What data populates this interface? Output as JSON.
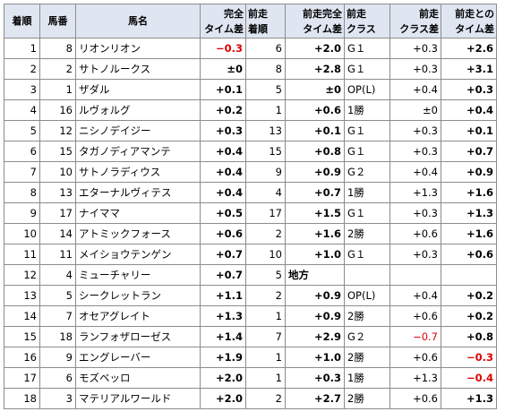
{
  "headers": [
    [
      "着順"
    ],
    [
      "馬番"
    ],
    [
      "馬名"
    ],
    [
      "完全",
      "タイム差"
    ],
    [
      "前走",
      "着順"
    ],
    [
      "前走完全",
      "タイム差"
    ],
    [
      "前走",
      "クラス"
    ],
    [
      "前走",
      "クラス差"
    ],
    [
      "前走との",
      "タイム差"
    ]
  ],
  "rows": [
    {
      "rank": "1",
      "num": "8",
      "name": "リオンリオン",
      "diff": "−0.3",
      "prev_rank": "6",
      "prev_diff": "+2.0",
      "prev_class": "G１",
      "class_diff": "+0.3",
      "time_change": "+2.6"
    },
    {
      "rank": "2",
      "num": "2",
      "name": "サトノルークス",
      "diff": "±0",
      "prev_rank": "8",
      "prev_diff": "+2.8",
      "prev_class": "G１",
      "class_diff": "+0.3",
      "time_change": "+3.1"
    },
    {
      "rank": "3",
      "num": "1",
      "name": "ザダル",
      "diff": "+0.1",
      "prev_rank": "5",
      "prev_diff": "±0",
      "prev_class": "OP(L)",
      "class_diff": "+0.4",
      "time_change": "+0.3"
    },
    {
      "rank": "4",
      "num": "16",
      "name": "ルヴォルグ",
      "diff": "+0.2",
      "prev_rank": "1",
      "prev_diff": "+0.6",
      "prev_class": "1勝",
      "class_diff": "±0",
      "time_change": "+0.4"
    },
    {
      "rank": "5",
      "num": "12",
      "name": "ニシノデイジー",
      "diff": "+0.3",
      "prev_rank": "13",
      "prev_diff": "+0.1",
      "prev_class": "G１",
      "class_diff": "+0.3",
      "time_change": "+0.1"
    },
    {
      "rank": "6",
      "num": "15",
      "name": "タガノディアマンテ",
      "diff": "+0.4",
      "prev_rank": "15",
      "prev_diff": "+0.8",
      "prev_class": "G１",
      "class_diff": "+0.3",
      "time_change": "+0.7"
    },
    {
      "rank": "7",
      "num": "10",
      "name": "サトノラディウス",
      "diff": "+0.4",
      "prev_rank": "9",
      "prev_diff": "+0.9",
      "prev_class": "G２",
      "class_diff": "+0.4",
      "time_change": "+0.9"
    },
    {
      "rank": "8",
      "num": "13",
      "name": "エターナルヴィテス",
      "diff": "+0.4",
      "prev_rank": "4",
      "prev_diff": "+0.7",
      "prev_class": "1勝",
      "class_diff": "+1.3",
      "time_change": "+1.6"
    },
    {
      "rank": "9",
      "num": "17",
      "name": "ナイママ",
      "diff": "+0.5",
      "prev_rank": "17",
      "prev_diff": "+1.5",
      "prev_class": "G１",
      "class_diff": "+0.3",
      "time_change": "+1.3"
    },
    {
      "rank": "10",
      "num": "14",
      "name": "アトミックフォース",
      "diff": "+0.6",
      "prev_rank": "2",
      "prev_diff": "+1.6",
      "prev_class": "2勝",
      "class_diff": "+0.6",
      "time_change": "+1.6"
    },
    {
      "rank": "11",
      "num": "11",
      "name": "メイショウテンゲン",
      "diff": "+0.7",
      "prev_rank": "10",
      "prev_diff": "+1.0",
      "prev_class": "G１",
      "class_diff": "+0.3",
      "time_change": "+0.6"
    },
    {
      "rank": "12",
      "num": "4",
      "name": "ミューチャリー",
      "diff": "+0.7",
      "prev_rank": "5",
      "prev_diff": "地方",
      "prev_class": "",
      "class_diff": "",
      "time_change": ""
    },
    {
      "rank": "13",
      "num": "5",
      "name": "シークレットラン",
      "diff": "+1.1",
      "prev_rank": "2",
      "prev_diff": "+0.9",
      "prev_class": "OP(L)",
      "class_diff": "+0.4",
      "time_change": "+0.2"
    },
    {
      "rank": "14",
      "num": "7",
      "name": "オセアグレイト",
      "diff": "+1.3",
      "prev_rank": "1",
      "prev_diff": "+0.9",
      "prev_class": "2勝",
      "class_diff": "+0.6",
      "time_change": "+0.2"
    },
    {
      "rank": "15",
      "num": "18",
      "name": "ランフォザローゼス",
      "diff": "+1.4",
      "prev_rank": "7",
      "prev_diff": "+2.9",
      "prev_class": "G２",
      "class_diff": "−0.7",
      "time_change": "+0.8"
    },
    {
      "rank": "16",
      "num": "9",
      "name": "エングレーバー",
      "diff": "+1.9",
      "prev_rank": "1",
      "prev_diff": "+1.0",
      "prev_class": "2勝",
      "class_diff": "+0.6",
      "time_change": "−0.3"
    },
    {
      "rank": "17",
      "num": "6",
      "name": "モズベッロ",
      "diff": "+2.0",
      "prev_rank": "1",
      "prev_diff": "+0.3",
      "prev_class": "1勝",
      "class_diff": "+1.3",
      "time_change": "−0.4"
    },
    {
      "rank": "18",
      "num": "3",
      "name": "マテリアルワールド",
      "diff": "+2.0",
      "prev_rank": "2",
      "prev_diff": "+2.7",
      "prev_class": "2勝",
      "class_diff": "+0.6",
      "time_change": "+1.3"
    }
  ],
  "colors": {
    "header_bg": "#dfe6f2",
    "grid": "#8c8c8c",
    "negative": "#e00000"
  }
}
